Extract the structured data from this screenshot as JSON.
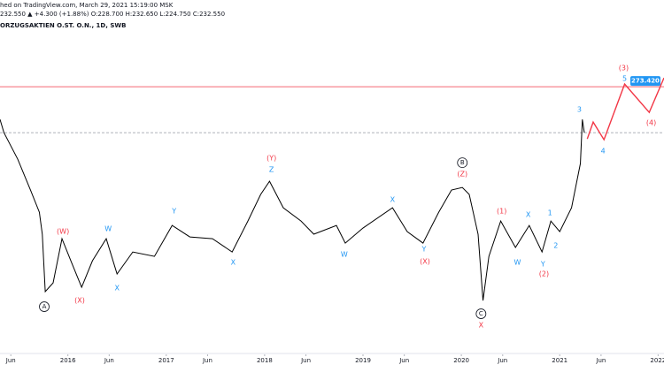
{
  "chart_data": {
    "type": "line",
    "header": [
      "hed on TradingView.com, March 29, 2021 15:19:00 MSK",
      "232.550 ▲ +4.300 (+1.88%) O:228.700 H:232.650 L:224.750 C:232.550"
    ],
    "header_color": "#089981",
    "title": "ORZUGSAKTIEN O.ST. O.N., 1D, SWB",
    "xlim": [
      2015.31,
      2022.06
    ],
    "ylim": [
      40,
      327
    ],
    "xticks": [
      {
        "value": 2015.42,
        "label": "Jun"
      },
      2016,
      {
        "value": 2016.42,
        "label": "Jun"
      },
      2017,
      {
        "value": 2017.42,
        "label": "Jun"
      },
      2018,
      {
        "value": 2018.42,
        "label": "Jun"
      },
      2019,
      {
        "value": 2019.42,
        "label": "Jun"
      },
      2020,
      {
        "value": 2020.42,
        "label": "Jun"
      },
      2021,
      {
        "value": 2021.42,
        "label": "Jun"
      },
      2022
    ],
    "series": [
      {
        "color": "#000000",
        "x": [
          2015.31,
          2015.35,
          2015.49,
          2015.62,
          2015.71,
          2015.74,
          2015.77,
          2015.85,
          2015.94,
          2016.03,
          2016.14,
          2016.25,
          2016.39,
          2016.5,
          2016.66,
          2016.88,
          2017.06,
          2017.24,
          2017.47,
          2017.67,
          2017.83,
          2017.96,
          2018.05,
          2018.19,
          2018.37,
          2018.5,
          2018.73,
          2018.82,
          2019.0,
          2019.3,
          2019.45,
          2019.61,
          2019.77,
          2019.9,
          2020.01,
          2020.08,
          2020.17,
          2020.22,
          2020.28,
          2020.4,
          2020.55,
          2020.69,
          2020.82,
          2020.91,
          2021.0,
          2021.12,
          2021.21,
          2021.23,
          2021.25
        ],
        "values": [
          244.3,
          232.6,
          209.0,
          181.5,
          161.8,
          142.2,
          91.1,
          98.9,
          138.2,
          118.6,
          95.0,
          118.6,
          138.2,
          106.8,
          126.4,
          122.5,
          150.0,
          139.8,
          138.2,
          126.4,
          153.9,
          177.6,
          189.3,
          165.7,
          153.9,
          142.2,
          150.0,
          134.3,
          147.7,
          165.7,
          144.5,
          134.3,
          161.8,
          181.5,
          183.8,
          177.6,
          142.2,
          83.2,
          122.5,
          153.9,
          130.4,
          150.0,
          126.4,
          153.9,
          144.5,
          165.7,
          205.1,
          244.3,
          232.55
        ]
      },
      {
        "color": "#f23645",
        "x": [
          2021.28,
          2021.34,
          2021.45,
          2021.66,
          2021.91,
          2022.06
        ],
        "values": [
          227.0,
          242.0,
          226.3,
          275.8,
          250.6,
          281.3
        ]
      }
    ],
    "hline": {
      "value": 273.42,
      "label": "273.420",
      "color": "#f23645",
      "label_color": "#2196f3"
    },
    "price_line": 232.55,
    "annotations": [
      {
        "text": "A",
        "x": 2015.76,
        "y": 77.7,
        "color": "#131722",
        "circled": true
      },
      {
        "text": "(W)",
        "x": 2015.95,
        "y": 144.5,
        "color": "#f23645"
      },
      {
        "text": "(X)",
        "x": 2016.12,
        "y": 83.2,
        "color": "#f23645"
      },
      {
        "text": "W",
        "x": 2016.41,
        "y": 146.9,
        "color": "#2196f3"
      },
      {
        "text": "X",
        "x": 2016.5,
        "y": 94.2,
        "color": "#2196f3"
      },
      {
        "text": "Y",
        "x": 2017.08,
        "y": 162.6,
        "color": "#2196f3"
      },
      {
        "text": "X",
        "x": 2017.68,
        "y": 117.0,
        "color": "#2196f3"
      },
      {
        "text": "(Y)",
        "x": 2018.07,
        "y": 209.8,
        "color": "#f23645"
      },
      {
        "text": "Z",
        "x": 2018.07,
        "y": 199.6,
        "color": "#2196f3"
      },
      {
        "text": "W",
        "x": 2018.81,
        "y": 124.1,
        "color": "#2196f3"
      },
      {
        "text": "X",
        "x": 2019.3,
        "y": 172.8,
        "color": "#2196f3"
      },
      {
        "text": "Y",
        "x": 2019.62,
        "y": 128.8,
        "color": "#2196f3"
      },
      {
        "text": "(X)",
        "x": 2019.63,
        "y": 117.8,
        "color": "#f23645"
      },
      {
        "text": "B",
        "x": 2020.01,
        "y": 205.8,
        "color": "#131722",
        "circled": true
      },
      {
        "text": "(Z)",
        "x": 2020.01,
        "y": 195.6,
        "color": "#f23645"
      },
      {
        "text": "C",
        "x": 2020.2,
        "y": 71.4,
        "color": "#131722",
        "circled": true
      },
      {
        "text": "X",
        "x": 2020.2,
        "y": 61.2,
        "color": "#f23645"
      },
      {
        "text": "(1)",
        "x": 2020.41,
        "y": 162.6,
        "color": "#f23645"
      },
      {
        "text": "W",
        "x": 2020.57,
        "y": 117.0,
        "color": "#2196f3"
      },
      {
        "text": "X",
        "x": 2020.68,
        "y": 159.5,
        "color": "#2196f3"
      },
      {
        "text": "Y",
        "x": 2020.83,
        "y": 115.4,
        "color": "#2196f3"
      },
      {
        "text": "(2)",
        "x": 2020.84,
        "y": 106.8,
        "color": "#f23645"
      },
      {
        "text": "1",
        "x": 2020.9,
        "y": 161.0,
        "color": "#2196f3"
      },
      {
        "text": "2",
        "x": 2020.96,
        "y": 132.0,
        "color": "#2196f3"
      },
      {
        "text": "3",
        "x": 2021.2,
        "y": 253.0,
        "color": "#2196f3"
      },
      {
        "text": "4",
        "x": 2021.44,
        "y": 216.0,
        "color": "#2196f3"
      },
      {
        "text": "(3)",
        "x": 2021.65,
        "y": 289.9,
        "color": "#f23645"
      },
      {
        "text": "5",
        "x": 2021.66,
        "y": 280.5,
        "color": "#2196f3"
      },
      {
        "text": "(4)",
        "x": 2021.93,
        "y": 241.2,
        "color": "#f23645"
      }
    ]
  }
}
